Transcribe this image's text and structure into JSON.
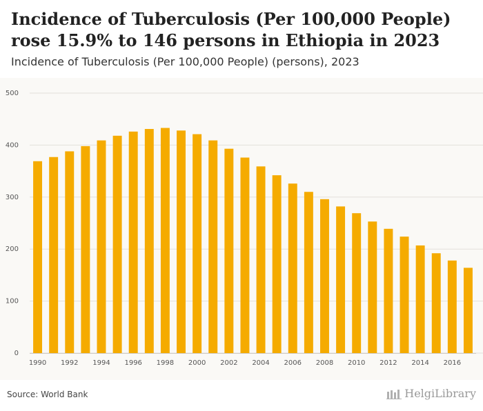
{
  "header": {
    "title": "Incidence of Tuberculosis (Per 100,000 People) rose 15.9% to 146 persons in Ethiopia in 2023",
    "subtitle": "Incidence of Tuberculosis (Per 100,000 People) (persons), 2023"
  },
  "footer": {
    "source": "Source: World Bank",
    "brand": "HelgiLibrary"
  },
  "colors": {
    "bar": "#f5ab00",
    "grid": "#e3e0da",
    "axis_text": "#555555"
  },
  "chart_data": {
    "type": "bar",
    "categories": [
      "1990",
      "1991",
      "1992",
      "1993",
      "1994",
      "1995",
      "1996",
      "1997",
      "1998",
      "1999",
      "2000",
      "2001",
      "2002",
      "2003",
      "2004",
      "2005",
      "2006",
      "2007",
      "2008",
      "2009",
      "2010",
      "2011",
      "2012",
      "2013",
      "2014",
      "2015",
      "2016",
      "2017"
    ],
    "x_tick_labels": [
      "1990",
      "1992",
      "1994",
      "1996",
      "1998",
      "2000",
      "2002",
      "2004",
      "2006",
      "2008",
      "2010",
      "2012",
      "2014",
      "2016"
    ],
    "values": [
      369,
      377,
      388,
      398,
      409,
      418,
      426,
      431,
      433,
      428,
      421,
      409,
      393,
      376,
      359,
      342,
      326,
      310,
      296,
      282,
      269,
      253,
      239,
      224,
      207,
      192,
      178,
      164
    ],
    "y_ticks": [
      0,
      100,
      200,
      300,
      400,
      500
    ],
    "ylim": [
      0,
      500
    ],
    "grid": true,
    "legend": "none"
  }
}
